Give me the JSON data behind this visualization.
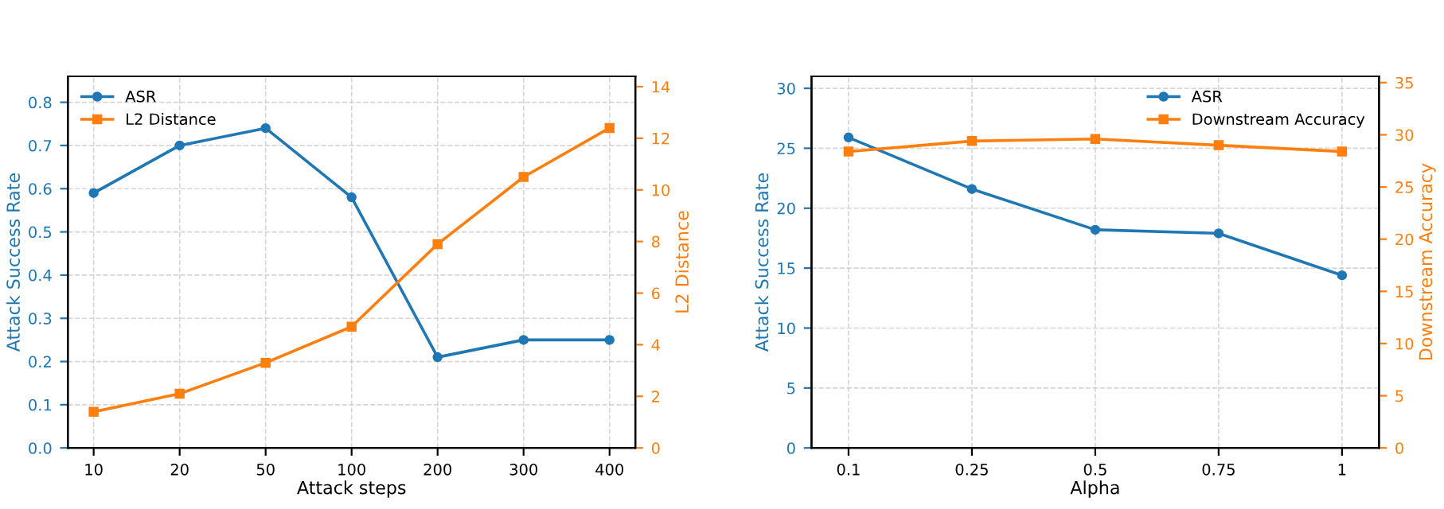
{
  "chart_data": [
    {
      "type": "line",
      "categories": [
        "10",
        "20",
        "50",
        "100",
        "200",
        "300",
        "400"
      ],
      "xlabel": "Attack steps",
      "ylabel": "Attack Success Rate",
      "y2label": "L2 Distance",
      "ylim": [
        0,
        0.86
      ],
      "yticks": [
        {
          "value": 0,
          "label": "0.0"
        },
        0.1,
        0.2,
        0.3,
        0.4,
        0.5,
        0.6,
        0.7,
        0.8
      ],
      "y2lim": [
        0,
        14.4
      ],
      "y2ticks": [
        0,
        2,
        4,
        6,
        8,
        10,
        12,
        14
      ],
      "grid": true,
      "legend": "top left",
      "series": [
        {
          "name": "ASR",
          "color": "#1f77b4",
          "marker": "circle",
          "values": [
            0.59,
            0.7,
            0.74,
            0.58,
            0.21,
            0.25,
            0.25
          ]
        },
        {
          "name": "L2 Distance",
          "color": "#ff7f0e",
          "marker": "square",
          "axis": "y2",
          "values": [
            1.4,
            2.1,
            3.3,
            4.7,
            7.9,
            10.5,
            12.4
          ]
        }
      ]
    },
    {
      "type": "line",
      "categories": [
        "0.1",
        "0.25",
        "0.5",
        "0.75",
        "1"
      ],
      "xlabel": "Alpha",
      "ylabel": "Attack Success Rate",
      "y2label": "Downstream Accuracy",
      "ylim": [
        0,
        31
      ],
      "yticks": [
        0,
        5,
        10,
        15,
        20,
        25,
        30
      ],
      "y2lim": [
        0,
        35.6
      ],
      "y2ticks": [
        0,
        5,
        10,
        15,
        20,
        25,
        30,
        35
      ],
      "grid": true,
      "legend": "top right",
      "series": [
        {
          "name": "ASR",
          "color": "#1f77b4",
          "marker": "circle",
          "values": [
            25.9,
            21.6,
            18.2,
            17.9,
            14.4
          ]
        },
        {
          "name": "Downstream Accuracy",
          "color": "#ff7f0e",
          "marker": "square",
          "axis": "y2",
          "values": [
            28.4,
            29.4,
            29.6,
            29.0,
            28.4
          ]
        }
      ]
    }
  ]
}
